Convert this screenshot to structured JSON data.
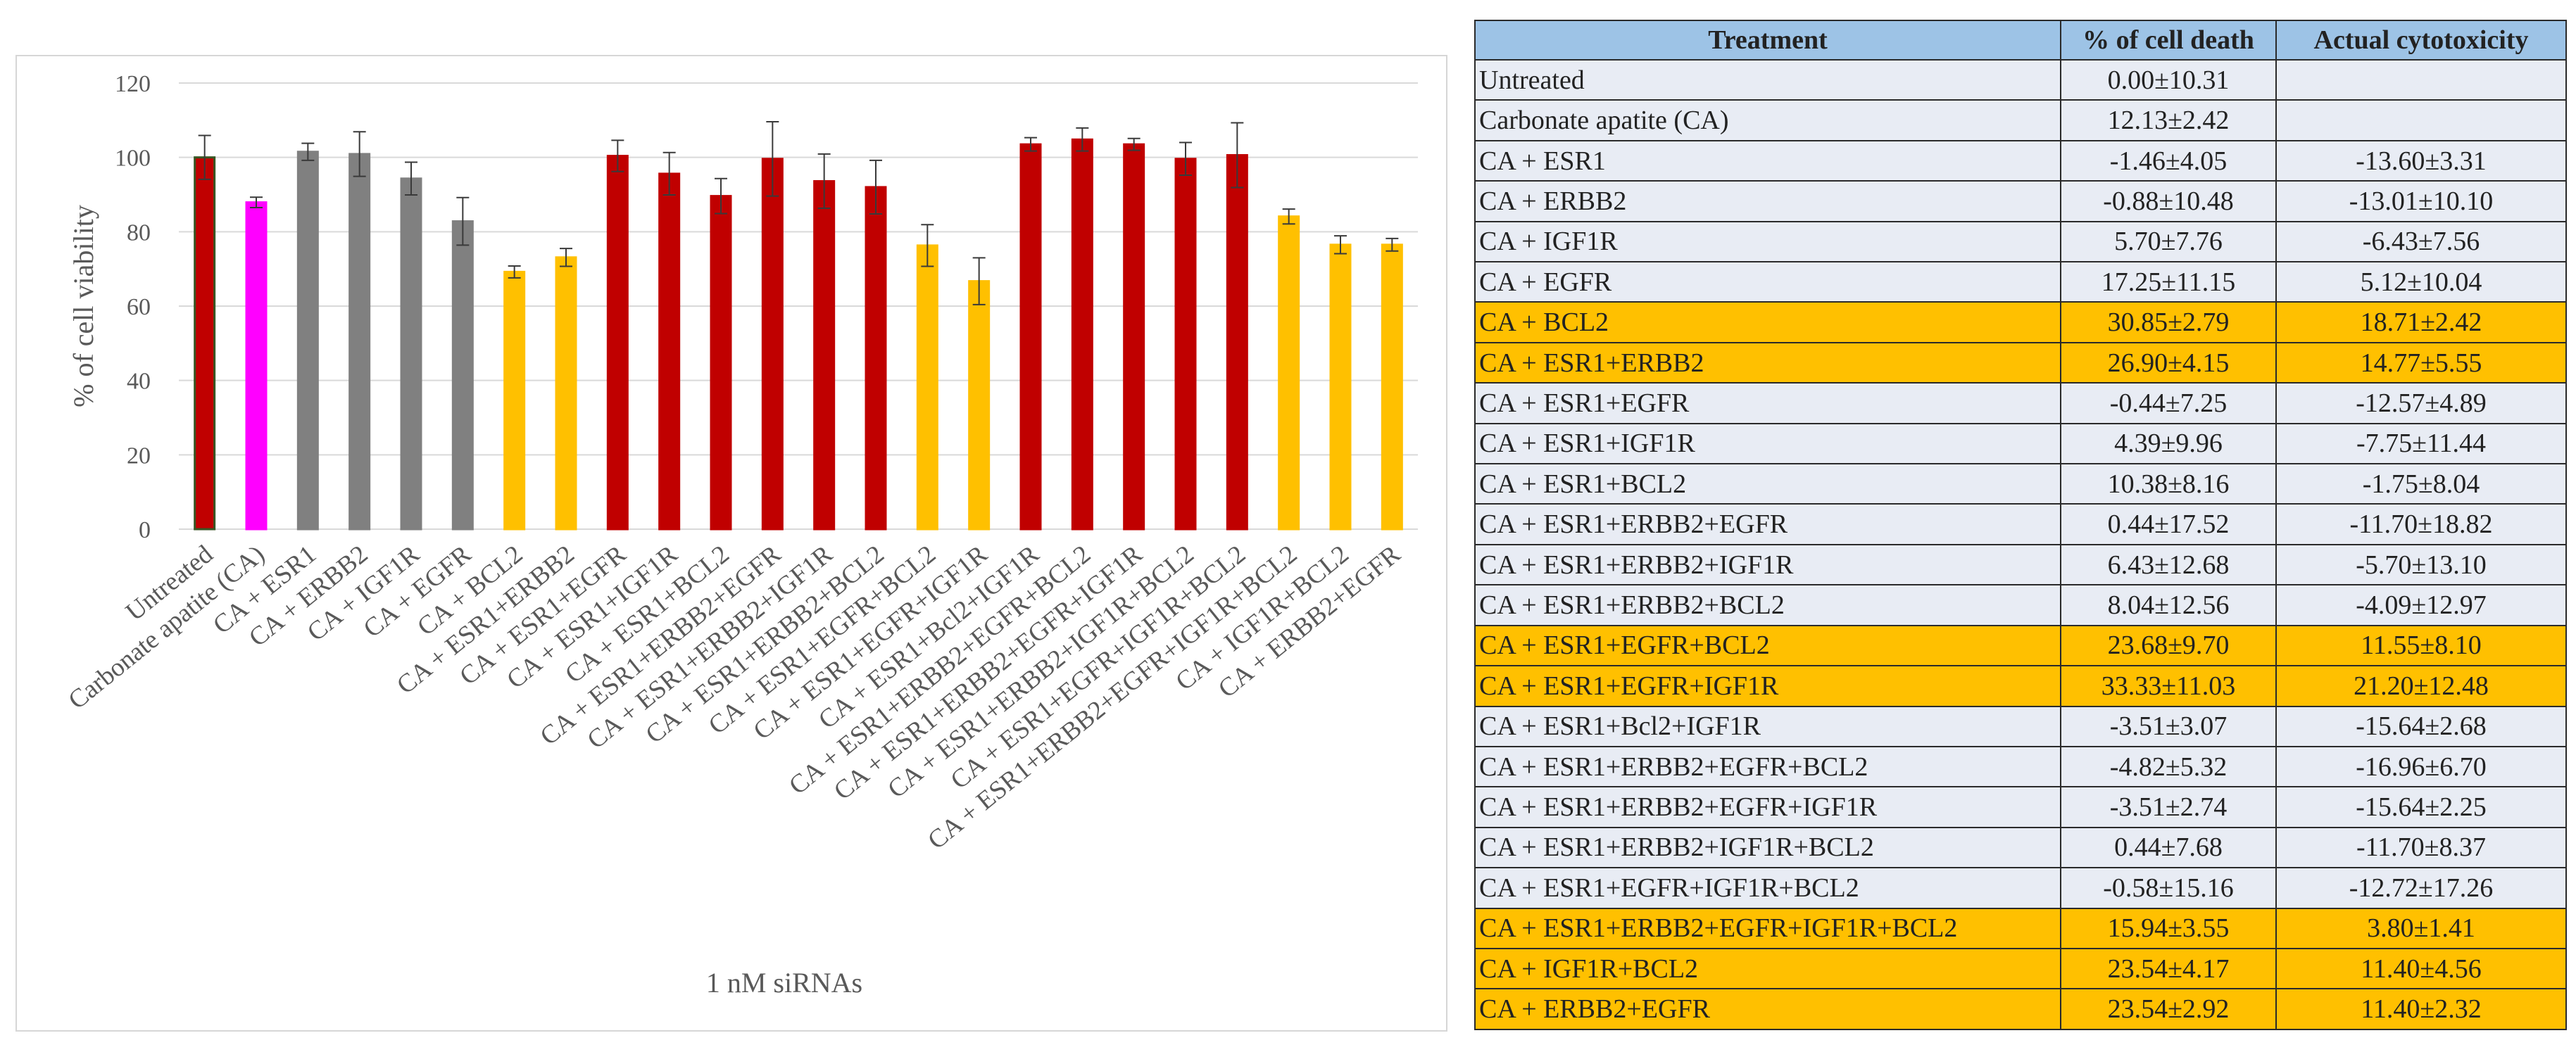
{
  "chart_data": {
    "type": "bar",
    "xlabel": "1 nM siRNAs",
    "ylabel": "% of cell viability",
    "ylim": [
      0,
      120
    ],
    "yticks": [
      0,
      20,
      40,
      60,
      80,
      100,
      120
    ],
    "grid": true,
    "categories": [
      "Untreated",
      "Carbonate apatite (CA)",
      "CA + ESR1",
      "CA + ERBB2",
      "CA + IGF1R",
      "CA + EGFR",
      "CA + BCL2",
      "CA + ESR1+ERBB2",
      "CA + ESR1+EGFR",
      "CA + ESR1+IGF1R",
      "CA + ESR1+BCL2",
      "CA + ESR1+ERBB2+EGFR",
      "CA + ESR1+ERBB2+IGF1R",
      "CA + ESR1+ERBB2+BCL2",
      "CA + ESR1+EGFR+BCL2",
      "CA + ESR1+EGFR+IGF1R",
      "CA + ESR1+Bcl2+IGF1R",
      "CA + ESR1+ERBB2+EGFR+BCL2",
      "CA + ESR1+ERBB2+EGFR+IGF1R",
      "CA + ESR1+ERBB2+IGF1R+BCL2",
      "CA + ESR1+EGFR+IGF1R+BCL2",
      "CA + ESR1+ERBB2+EGFR+IGF1R+BCL2",
      "CA + IGF1R+BCL2",
      "CA + ERBB2+EGFR"
    ],
    "values": [
      100,
      87.9,
      101.5,
      100.9,
      94.3,
      82.8,
      69.2,
      73.1,
      100.4,
      95.6,
      89.6,
      99.6,
      93.6,
      92.0,
      76.3,
      66.7,
      103.5,
      104.8,
      103.5,
      99.6,
      100.6,
      84.1,
      76.5,
      76.5
    ],
    "errors": [
      5.9,
      1.4,
      2.3,
      6.0,
      4.4,
      6.4,
      1.6,
      2.4,
      4.2,
      5.7,
      4.7,
      10.0,
      7.3,
      7.2,
      5.6,
      6.3,
      1.8,
      3.1,
      1.6,
      4.4,
      8.7,
      2.0,
      2.4,
      1.7
    ],
    "colors": [
      "#c00000",
      "#ff00ff",
      "#808080",
      "#808080",
      "#808080",
      "#808080",
      "#ffc000",
      "#ffc000",
      "#c00000",
      "#c00000",
      "#c00000",
      "#c00000",
      "#c00000",
      "#c00000",
      "#ffc000",
      "#ffc000",
      "#c00000",
      "#c00000",
      "#c00000",
      "#c00000",
      "#c00000",
      "#ffc000",
      "#ffc000",
      "#ffc000"
    ],
    "edge_colors": [
      "#375623",
      "#ff00ff",
      "#808080",
      "#808080",
      "#808080",
      "#808080",
      "#ffc000",
      "#ffc000",
      "#c00000",
      "#c00000",
      "#c00000",
      "#c00000",
      "#c00000",
      "#c00000",
      "#ffc000",
      "#ffc000",
      "#c00000",
      "#c00000",
      "#c00000",
      "#c00000",
      "#c00000",
      "#ffc000",
      "#ffc000",
      "#ffc000"
    ]
  },
  "table": {
    "headers": [
      "Treatment",
      "% of cell death",
      "Actual cytotoxicity"
    ],
    "header_color": "#9dc3e6",
    "normal_color": "#e8ecf4",
    "highlight_color": "#ffc000",
    "rows": [
      {
        "treatment": "Untreated",
        "death": "0.00±10.31",
        "cyto": "",
        "highlight": false
      },
      {
        "treatment": "Carbonate apatite (CA)",
        "death": "12.13±2.42",
        "cyto": "",
        "highlight": false
      },
      {
        "treatment": "CA + ESR1",
        "death": "-1.46±4.05",
        "cyto": "-13.60±3.31",
        "highlight": false
      },
      {
        "treatment": "CA + ERBB2",
        "death": "-0.88±10.48",
        "cyto": "-13.01±10.10",
        "highlight": false
      },
      {
        "treatment": "CA + IGF1R",
        "death": "5.70±7.76",
        "cyto": "-6.43±7.56",
        "highlight": false
      },
      {
        "treatment": "CA + EGFR",
        "death": "17.25±11.15",
        "cyto": "5.12±10.04",
        "highlight": false
      },
      {
        "treatment": "CA + BCL2",
        "death": "30.85±2.79",
        "cyto": "18.71±2.42",
        "highlight": true
      },
      {
        "treatment": "CA + ESR1+ERBB2",
        "death": "26.90±4.15",
        "cyto": "14.77±5.55",
        "highlight": true
      },
      {
        "treatment": "CA + ESR1+EGFR",
        "death": "-0.44±7.25",
        "cyto": "-12.57±4.89",
        "highlight": false
      },
      {
        "treatment": "CA + ESR1+IGF1R",
        "death": "4.39±9.96",
        "cyto": "-7.75±11.44",
        "highlight": false
      },
      {
        "treatment": "CA + ESR1+BCL2",
        "death": "10.38±8.16",
        "cyto": "-1.75±8.04",
        "highlight": false
      },
      {
        "treatment": "CA + ESR1+ERBB2+EGFR",
        "death": "0.44±17.52",
        "cyto": "-11.70±18.82",
        "highlight": false
      },
      {
        "treatment": "CA + ESR1+ERBB2+IGF1R",
        "death": "6.43±12.68",
        "cyto": "-5.70±13.10",
        "highlight": false
      },
      {
        "treatment": "CA + ESR1+ERBB2+BCL2",
        "death": "8.04±12.56",
        "cyto": "-4.09±12.97",
        "highlight": false
      },
      {
        "treatment": "CA + ESR1+EGFR+BCL2",
        "death": "23.68±9.70",
        "cyto": "11.55±8.10",
        "highlight": true
      },
      {
        "treatment": "CA + ESR1+EGFR+IGF1R",
        "death": "33.33±11.03",
        "cyto": "21.20±12.48",
        "highlight": true
      },
      {
        "treatment": "CA + ESR1+Bcl2+IGF1R",
        "death": "-3.51±3.07",
        "cyto": "-15.64±2.68",
        "highlight": false
      },
      {
        "treatment": "CA + ESR1+ERBB2+EGFR+BCL2",
        "death": "-4.82±5.32",
        "cyto": "-16.96±6.70",
        "highlight": false
      },
      {
        "treatment": "CA + ESR1+ERBB2+EGFR+IGF1R",
        "death": "-3.51±2.74",
        "cyto": "-15.64±2.25",
        "highlight": false
      },
      {
        "treatment": "CA + ESR1+ERBB2+IGF1R+BCL2",
        "death": "0.44±7.68",
        "cyto": "-11.70±8.37",
        "highlight": false
      },
      {
        "treatment": "CA + ESR1+EGFR+IGF1R+BCL2",
        "death": "-0.58±15.16",
        "cyto": "-12.72±17.26",
        "highlight": false
      },
      {
        "treatment": "CA + ESR1+ERBB2+EGFR+IGF1R+BCL2",
        "death": "15.94±3.55",
        "cyto": "3.80±1.41",
        "highlight": true
      },
      {
        "treatment": "CA + IGF1R+BCL2",
        "death": "23.54±4.17",
        "cyto": "11.40±4.56",
        "highlight": true
      },
      {
        "treatment": "CA + ERBB2+EGFR",
        "death": "23.54±2.92",
        "cyto": "11.40±2.32",
        "highlight": true
      }
    ]
  }
}
